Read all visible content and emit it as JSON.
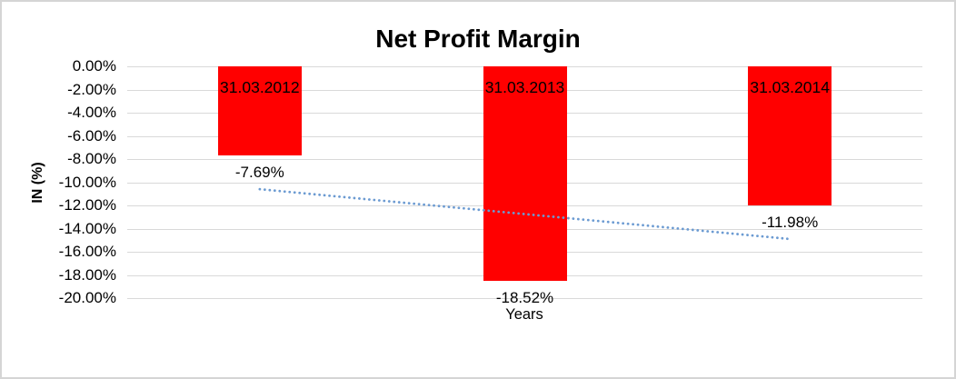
{
  "chart_data": {
    "type": "bar",
    "title": "Net Profit Margin",
    "xlabel": "Years",
    "ylabel": "IN (%)",
    "categories": [
      "31.03.2012",
      "31.03.2013",
      "31.03.2014"
    ],
    "values": [
      -7.69,
      -18.52,
      -11.98
    ],
    "value_labels": [
      "-7.69%",
      "-18.52%",
      "-11.98%"
    ],
    "category_label_position": "inside-top",
    "value_label_position": "outside-end",
    "ylim": [
      -20,
      0
    ],
    "ytick_labels": [
      "0.00%",
      "-2.00%",
      "-4.00%",
      "-6.00%",
      "-8.00%",
      "-10.00%",
      "-12.00%",
      "-14.00%",
      "-16.00%",
      "-18.00%",
      "-20.00%"
    ],
    "grid": true,
    "legend": "none",
    "trendline": {
      "style": "dotted",
      "start_value": -10.6,
      "end_value": -14.9
    },
    "colors": {
      "bar": "#FF0000",
      "gridline": "#D9D9D9",
      "text": "#000000",
      "trendline": "#6C9BD2",
      "border": "#D5D5D5"
    }
  }
}
